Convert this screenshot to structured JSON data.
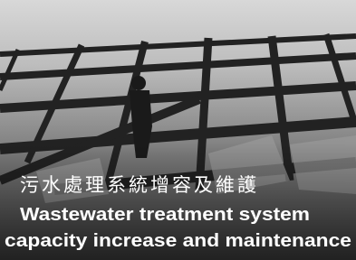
{
  "caption": {
    "chinese": "污水處理系統增容及維護",
    "english": [
      "Wastewater treatment system",
      "capacity increase and maintenance"
    ]
  }
}
